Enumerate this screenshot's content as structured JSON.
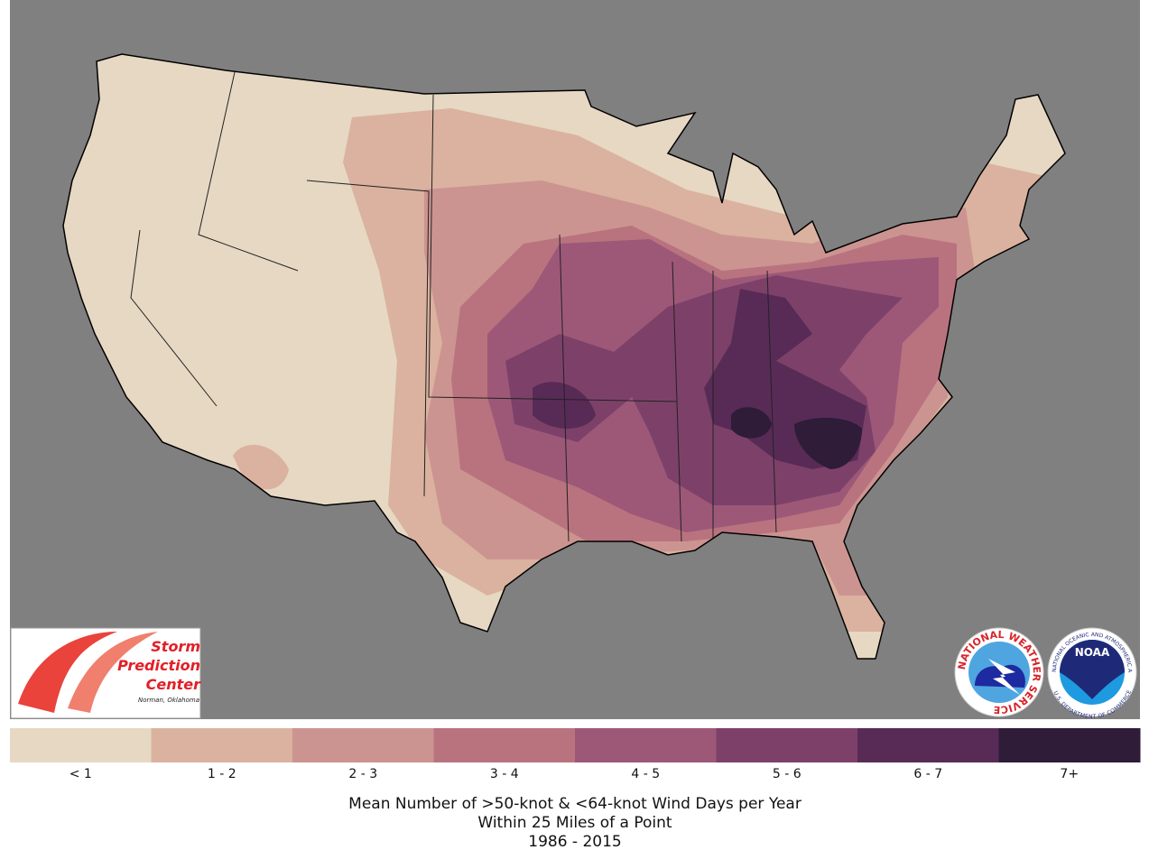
{
  "map": {
    "legend": [
      {
        "label": "< 1",
        "color": "#e6d8c3"
      },
      {
        "label": "1 - 2",
        "color": "#dab29f"
      },
      {
        "label": "2 - 3",
        "color": "#cc9490"
      },
      {
        "label": "3 - 4",
        "color": "#b9737f"
      },
      {
        "label": "4 - 5",
        "color": "#9d5878"
      },
      {
        "label": "5 - 6",
        "color": "#7d4169"
      },
      {
        "label": "6 - 7",
        "color": "#582b57"
      },
      {
        "label": "7+",
        "color": "#2e1c39"
      }
    ],
    "title": [
      "Mean Number of >50-knot & <64-knot Wind Days per Year",
      "Within 25 Miles of a Point",
      "1986 - 2015"
    ]
  },
  "logos": {
    "spc": {
      "lines": [
        "Storm",
        "Prediction",
        "Center"
      ],
      "place": "Norman, Oklahoma"
    },
    "nws": {
      "ring": "NATIONAL WEATHER SERVICE"
    },
    "noaa": {
      "name": "NOAA",
      "ring_top": "NATIONAL OCEANIC AND ATMOSPHERIC ADMINISTRATION",
      "ring_bottom": "U.S. DEPARTMENT OF COMMERCE"
    }
  }
}
